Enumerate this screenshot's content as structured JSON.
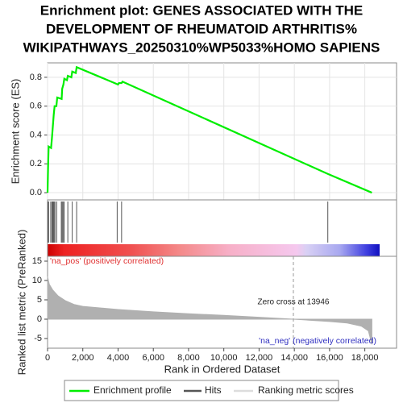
{
  "chart_data": [
    {
      "type": "line",
      "title": [
        "Enrichment plot: GENES ASSOCIATED WITH THE",
        "DEVELOPMENT OF RHEUMATOID ARTHRITIS%",
        "WIKIPATHWAYS_20250310%WP5033%HOMO SAPIENS"
      ],
      "ylabel": "Enrichment score (ES)",
      "xlim": [
        0,
        19800
      ],
      "ylim": [
        -0.05,
        0.9
      ],
      "yticks": [
        {
          "value": 0,
          "label": "0.0"
        },
        0.2,
        0.4,
        0.6,
        0.8
      ],
      "grid": true,
      "series": [
        {
          "name": "Enrichment profile",
          "color": "#00ee00",
          "x": [
            0,
            30,
            60,
            200,
            250,
            300,
            350,
            400,
            500,
            550,
            800,
            830,
            900,
            950,
            1100,
            1150,
            1350,
            1400,
            1600,
            1650,
            4000,
            4050,
            4200,
            4250,
            15900,
            18400
          ],
          "values": [
            0,
            0.18,
            0.32,
            0.31,
            0.38,
            0.46,
            0.54,
            0.6,
            0.6,
            0.66,
            0.65,
            0.72,
            0.75,
            0.79,
            0.78,
            0.81,
            0.8,
            0.84,
            0.83,
            0.87,
            0.75,
            0.76,
            0.76,
            0.77,
            0.13,
            0
          ]
        }
      ]
    },
    {
      "type": "hits",
      "name": "Hits",
      "color": "#555555",
      "x": [
        20,
        60,
        180,
        250,
        290,
        330,
        370,
        420,
        520,
        780,
        830,
        880,
        940,
        1150,
        1400,
        1650,
        3950,
        4200,
        15900
      ]
    },
    {
      "type": "area",
      "ylabel": "Ranked list metric (PreRanked)",
      "xlabel": "Rank in Ordered Dataset",
      "xlim": [
        0,
        19800
      ],
      "ylim": [
        -7.5,
        16.25
      ],
      "xticks": [
        0,
        {
          "value": 2000,
          "label": "2,000"
        },
        {
          "value": 4000,
          "label": "4,000"
        },
        {
          "value": 6000,
          "label": "6,000"
        },
        {
          "value": 8000,
          "label": "8,000"
        },
        {
          "value": 10000,
          "label": "10,000"
        },
        {
          "value": 12000,
          "label": "12,000"
        },
        {
          "value": 14000,
          "label": "14,000"
        },
        {
          "value": 16000,
          "label": "16,000"
        },
        {
          "value": 18000,
          "label": "18,000"
        }
      ],
      "yticks": [
        -5,
        0,
        5,
        10,
        15
      ],
      "positive_label": "'na_pos' (positively correlated)",
      "negative_label": "'na_neg' (negatively correlated)",
      "zero_cross": {
        "value": 13946,
        "label": "Zero cross at 13946"
      },
      "series": [
        {
          "name": "Ranking metric scores",
          "color": "#b0b0b0",
          "x": [
            0,
            100,
            300,
            600,
            1000,
            1500,
            2000,
            4000,
            6000,
            8000,
            10000,
            12000,
            13946,
            16000,
            17000,
            17800,
            18200,
            18400
          ],
          "values": [
            11,
            9,
            7.5,
            6,
            4.8,
            3.8,
            3.3,
            2.5,
            1.9,
            1.4,
            1,
            0.5,
            0,
            -0.6,
            -1,
            -1.8,
            -3,
            -6.5
          ]
        }
      ]
    }
  ]
}
